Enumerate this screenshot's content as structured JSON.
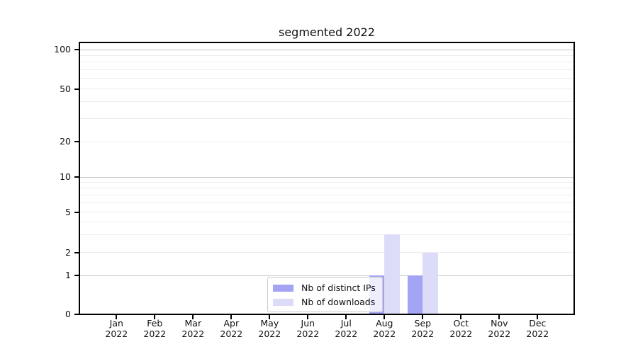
{
  "chart_data": {
    "type": "bar",
    "title": "segmented 2022",
    "scale": "segmented-log-y",
    "categories": [
      "Jan 2022",
      "Feb 2022",
      "Mar 2022",
      "Apr 2022",
      "May 2022",
      "Jun 2022",
      "Jul 2022",
      "Aug 2022",
      "Sep 2022",
      "Oct 2022",
      "Nov 2022",
      "Dec 2022"
    ],
    "series": [
      {
        "name": "Nb of distinct IPs",
        "color": "#a4a4f4",
        "values": [
          0,
          0,
          0,
          0,
          0,
          0,
          0,
          1,
          1,
          0,
          0,
          0
        ]
      },
      {
        "name": "Nb of downloads",
        "color": "#dcdcf8",
        "values": [
          0,
          0,
          0,
          0,
          0,
          0,
          0,
          3,
          2,
          0,
          0,
          0
        ]
      }
    ],
    "y_axis": {
      "ticks": [
        0,
        1,
        2,
        5,
        10,
        20,
        50,
        100
      ],
      "minor_gridlines": [
        3,
        4,
        6,
        7,
        8,
        9,
        30,
        40,
        60,
        70,
        80,
        90
      ],
      "range": [
        0,
        100
      ]
    },
    "legend": {
      "position": "bottom-center-inside",
      "items": [
        "Nb of distinct IPs",
        "Nb of downloads"
      ]
    },
    "grid": "horizontal-only",
    "colors": {
      "major_grid": "#c8c8c8",
      "minor_grid": "#ededed",
      "axis": "#000000",
      "background": "#ffffff",
      "text": "#111111"
    }
  }
}
